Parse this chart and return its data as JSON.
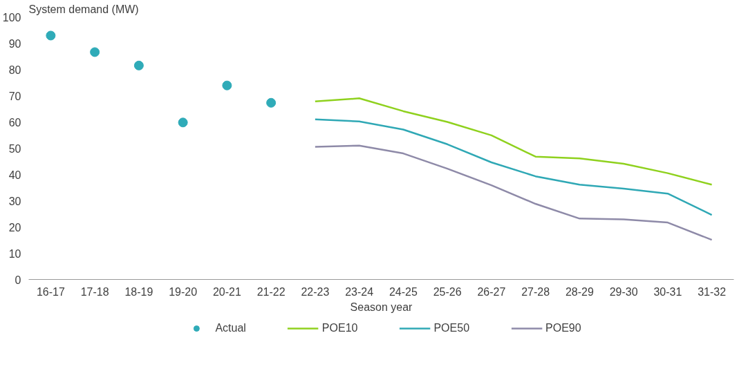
{
  "chart_data": {
    "type": "line",
    "ylabel": "System demand (MW)",
    "xlabel": "Season year",
    "categories": [
      "16-17",
      "17-18",
      "18-19",
      "19-20",
      "20-21",
      "21-22",
      "22-23",
      "23-24",
      "24-25",
      "25-26",
      "26-27",
      "27-28",
      "28-29",
      "29-30",
      "30-31",
      "31-32"
    ],
    "ylim": [
      0,
      100
    ],
    "yticks": [
      0,
      10,
      20,
      30,
      40,
      50,
      60,
      70,
      80,
      90,
      100
    ],
    "grid": false,
    "legend": "bottom",
    "series": [
      {
        "name": "Actual",
        "type": "scatter",
        "marker": "circle",
        "color": "#2fabb8",
        "values": [
          92.9,
          86.6,
          81.5,
          59.8,
          73.9,
          67.3,
          null,
          null,
          null,
          null,
          null,
          null,
          null,
          null,
          null,
          null
        ]
      },
      {
        "name": "POE10",
        "color": "#8fd11e",
        "values": [
          null,
          null,
          null,
          null,
          null,
          null,
          67.8,
          69.0,
          64.1,
          60.0,
          54.9,
          46.8,
          46.1,
          44.1,
          40.5,
          36.1
        ]
      },
      {
        "name": "POE50",
        "color": "#2fa8b5",
        "values": [
          null,
          null,
          null,
          null,
          null,
          null,
          61.0,
          60.2,
          57.1,
          51.5,
          44.6,
          39.3,
          36.1,
          34.6,
          32.7,
          24.6
        ]
      },
      {
        "name": "POE90",
        "color": "#8e8aa8",
        "values": [
          null,
          null,
          null,
          null,
          null,
          null,
          50.5,
          51.0,
          48.0,
          42.2,
          35.9,
          28.8,
          23.2,
          22.9,
          21.7,
          15.1
        ]
      }
    ]
  }
}
